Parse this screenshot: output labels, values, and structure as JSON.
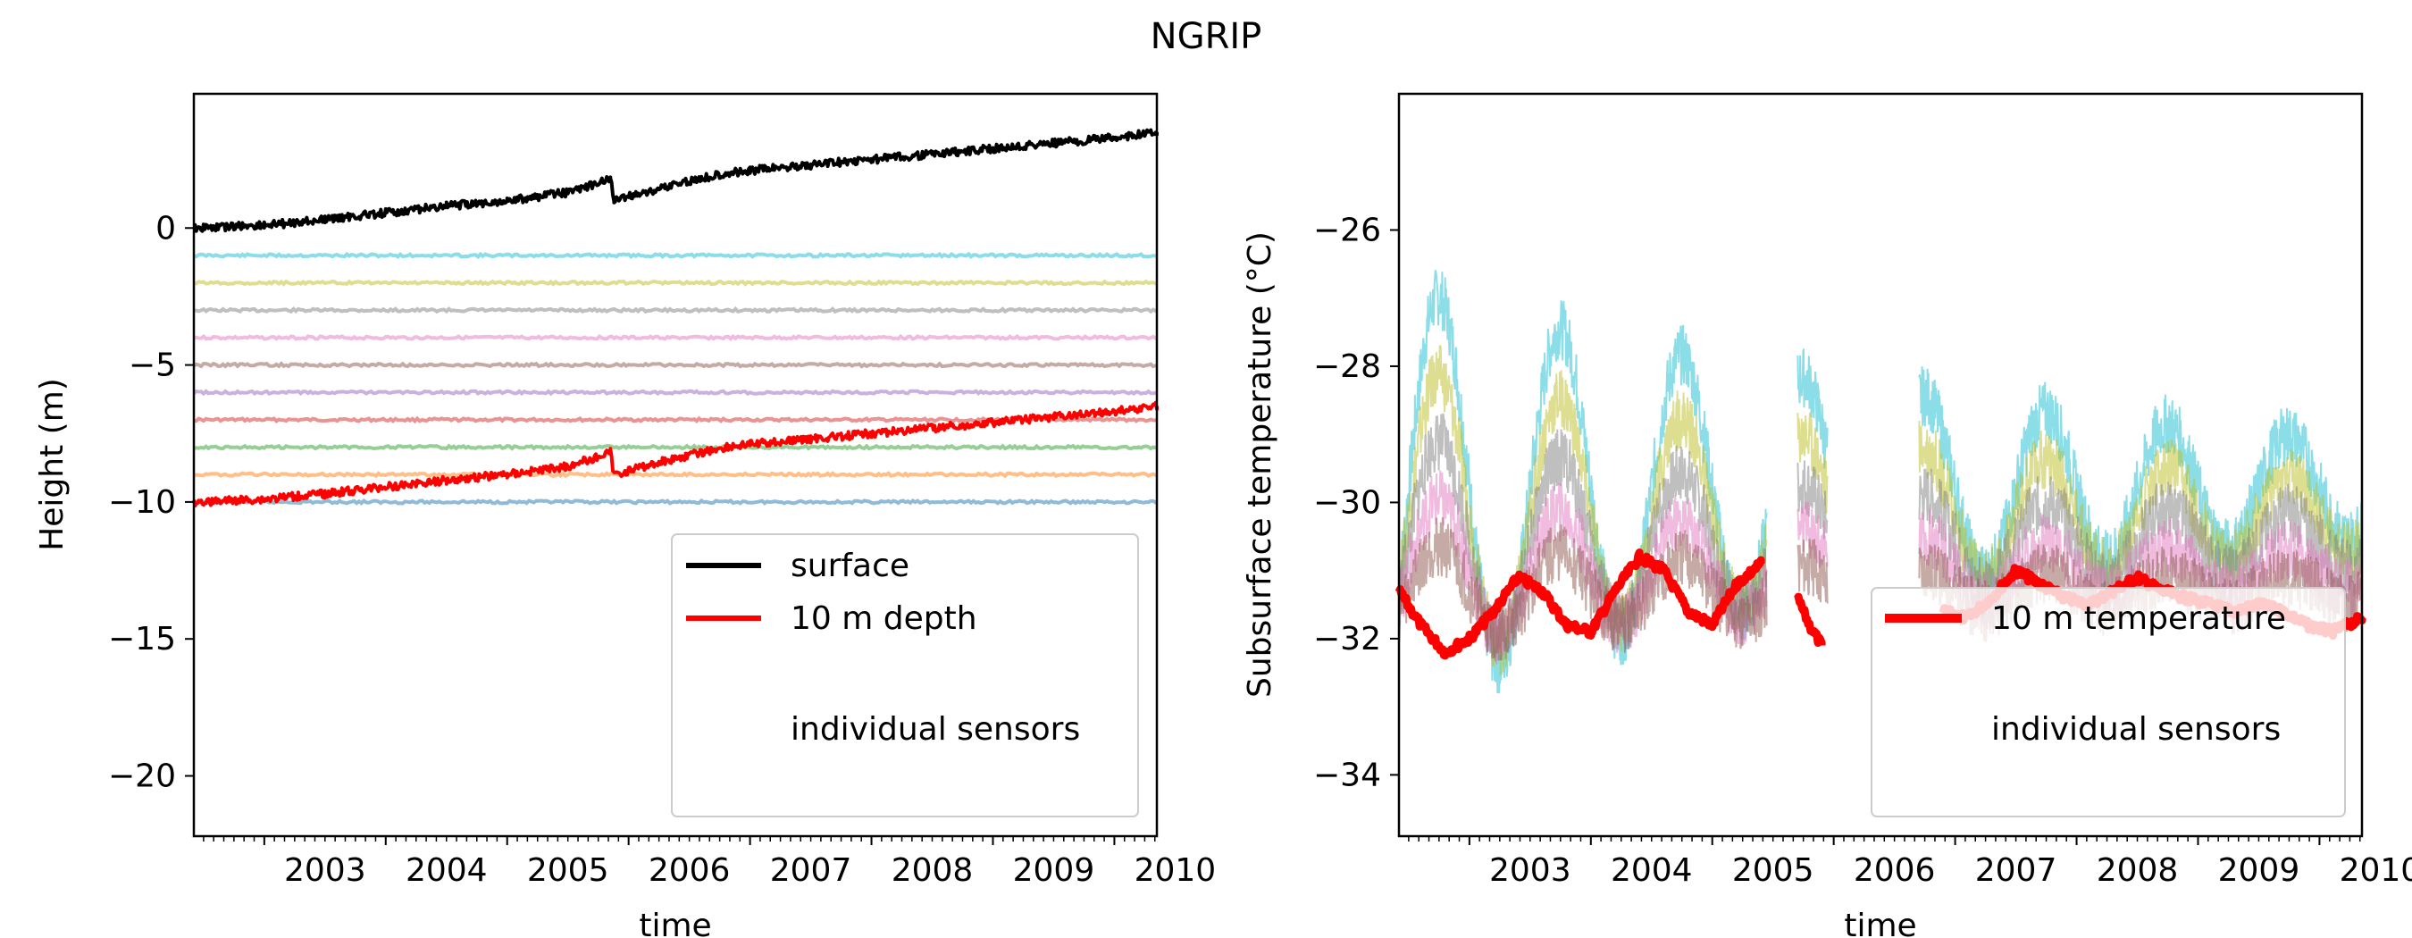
{
  "figure": {
    "title": "NGRIP"
  },
  "chart_data": [
    {
      "type": "line",
      "xlabel": "time",
      "ylabel": "Height (m)",
      "xlim": [
        2002.42,
        2010.35
      ],
      "ylim": [
        -22.2,
        4.9
      ],
      "grid": false,
      "x_ticks": [
        "2003",
        "2004",
        "2005",
        "2006",
        "2007",
        "2008",
        "2009",
        "2010"
      ],
      "y_ticks": [
        "0",
        "−5",
        "−10",
        "−15",
        "−20"
      ],
      "y_tick_values": [
        0,
        -5,
        -10,
        -15,
        -20
      ],
      "legend_position": "lower-right",
      "legend": [
        {
          "label": "surface",
          "color": "#000000"
        },
        {
          "label": "10 m depth",
          "color": "#ff0000"
        },
        {
          "label": "individual sensors",
          "color": ""
        }
      ],
      "series": [
        {
          "name": "surface",
          "color": "#000000",
          "x": [
            2002.42,
            2003.0,
            2003.5,
            2004.0,
            2004.5,
            2005.0,
            2005.5,
            2005.85,
            2005.88,
            2006.3,
            2006.8,
            2007.0,
            2007.5,
            2008.0,
            2008.5,
            2009.0,
            2009.5,
            2010.0,
            2010.35
          ],
          "y": [
            0.0,
            0.1,
            0.3,
            0.55,
            0.8,
            1.0,
            1.3,
            1.8,
            1.0,
            1.5,
            2.0,
            2.1,
            2.3,
            2.5,
            2.7,
            2.9,
            3.1,
            3.3,
            3.5
          ]
        },
        {
          "name": "10 m depth",
          "color": "#ff0000",
          "x": [
            2002.42,
            2003.0,
            2003.5,
            2004.0,
            2004.5,
            2005.0,
            2005.5,
            2005.85,
            2005.88,
            2006.3,
            2006.8,
            2007.0,
            2007.5,
            2008.0,
            2008.5,
            2009.0,
            2009.5,
            2010.0,
            2010.35
          ],
          "y": [
            -10.0,
            -9.9,
            -9.7,
            -9.45,
            -9.2,
            -9.0,
            -8.7,
            -8.2,
            -9.0,
            -8.5,
            -8.0,
            -7.9,
            -7.7,
            -7.5,
            -7.3,
            -7.1,
            -6.9,
            -6.7,
            -6.5
          ]
        }
      ],
      "sensor_levels": [
        {
          "y": -1,
          "color": "#17becf"
        },
        {
          "y": -2,
          "color": "#bcbd22"
        },
        {
          "y": -3,
          "color": "#7f7f7f"
        },
        {
          "y": -4,
          "color": "#e377c2"
        },
        {
          "y": -5,
          "color": "#8c564b"
        },
        {
          "y": -6,
          "color": "#9467bd"
        },
        {
          "y": -7,
          "color": "#d62728"
        },
        {
          "y": -8,
          "color": "#2ca02c"
        },
        {
          "y": -9,
          "color": "#ff7f0e"
        },
        {
          "y": -10,
          "color": "#1f77b4"
        }
      ]
    },
    {
      "type": "line",
      "xlabel": "time",
      "ylabel": "Subsurface temperature (°C)",
      "xlim": [
        2002.42,
        2010.35
      ],
      "ylim": [
        -34.9,
        -24.0
      ],
      "grid": false,
      "x_ticks": [
        "2003",
        "2004",
        "2005",
        "2006",
        "2007",
        "2008",
        "2009",
        "2010"
      ],
      "y_ticks": [
        "−26",
        "−28",
        "−30",
        "−32",
        "−34"
      ],
      "y_tick_values": [
        -26,
        -28,
        -30,
        -32,
        -34
      ],
      "legend_position": "lower-right",
      "legend": [
        {
          "label": "10 m temperature",
          "color": "#ff0000"
        },
        {
          "label": "individual sensors",
          "color": ""
        }
      ],
      "series": [
        {
          "name": "10 m temperature",
          "color": "#ff0000",
          "segments": [
            {
              "x": [
                2002.42,
                2002.6,
                2002.8,
                2003.0,
                2003.2,
                2003.4,
                2003.6,
                2003.8,
                2004.0,
                2004.2,
                2004.4,
                2004.6,
                2004.8,
                2005.0,
                2005.2,
                2005.4
              ],
              "y": [
                -31.3,
                -31.8,
                -32.2,
                -32.0,
                -31.6,
                -31.1,
                -31.3,
                -31.8,
                -31.9,
                -31.3,
                -30.8,
                -31.0,
                -31.6,
                -31.8,
                -31.2,
                -30.9
              ]
            },
            {
              "x": [
                2005.7,
                2005.8,
                2005.9
              ],
              "y": [
                -31.4,
                -31.8,
                -32.1
              ]
            },
            {
              "x": [
                2006.9,
                2007.1,
                2007.3,
                2007.5,
                2007.7,
                2007.9,
                2008.1,
                2008.3,
                2008.5,
                2008.7,
                2008.9,
                2009.1,
                2009.3,
                2009.5,
                2009.7,
                2009.9,
                2010.1,
                2010.35
              ],
              "y": [
                -31.6,
                -31.7,
                -31.4,
                -31.0,
                -31.2,
                -31.4,
                -31.5,
                -31.3,
                -31.1,
                -31.3,
                -31.4,
                -31.5,
                -31.6,
                -31.5,
                -31.6,
                -31.8,
                -31.9,
                -31.7
              ]
            }
          ]
        }
      ],
      "sensor_bands": [
        {
          "color": "#17becf",
          "amplitude": 3.0,
          "mean": -29.8
        },
        {
          "color": "#bcbd22",
          "amplitude": 2.2,
          "mean": -30.2
        },
        {
          "color": "#7f7f7f",
          "amplitude": 1.6,
          "mean": -30.6
        },
        {
          "color": "#e377c2",
          "amplitude": 1.1,
          "mean": -31.0
        },
        {
          "color": "#8c564b",
          "amplitude": 0.7,
          "mean": -31.3
        }
      ]
    }
  ]
}
